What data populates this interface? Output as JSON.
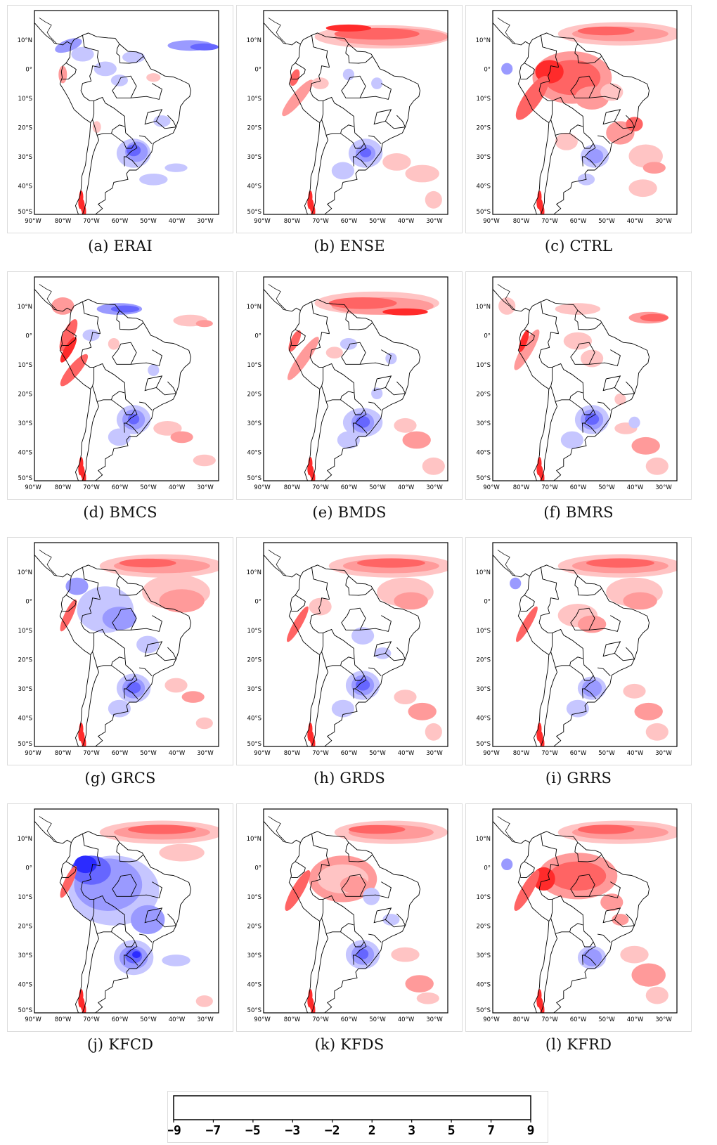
{
  "map_style": {
    "lon_ticks": [
      "90°W",
      "80°W",
      "70°W",
      "60°W",
      "50°W",
      "40°W",
      "30°W"
    ],
    "lat_ticks": [
      "10°N",
      "0°",
      "10°S",
      "20°S",
      "30°S",
      "40°S",
      "50°S"
    ],
    "colors": {
      "neg_strong": "#2b2bff",
      "neg_mid": "#6666ff",
      "neg_light": "#9a9aff",
      "neg_pale": "#c6c6ff",
      "pos_pale": "#ffc4c4",
      "pos_light": "#ff9a9a",
      "pos_mid": "#ff6464",
      "pos_strong": "#ff2b2b",
      "border": "#000000"
    }
  },
  "panels": [
    {
      "caption": "(a) ERAI",
      "pattern": "erai"
    },
    {
      "caption": "(b) ENSE",
      "pattern": "ense"
    },
    {
      "caption": "(c) CTRL",
      "pattern": "ctrl"
    },
    {
      "caption": "(d) BMCS",
      "pattern": "bmcs"
    },
    {
      "caption": "(e) BMDS",
      "pattern": "bmds"
    },
    {
      "caption": "(f) BMRS",
      "pattern": "bmrs"
    },
    {
      "caption": "(g) GRCS",
      "pattern": "grcs"
    },
    {
      "caption": "(h) GRDS",
      "pattern": "grds"
    },
    {
      "caption": "(i) GRRS",
      "pattern": "grrs"
    },
    {
      "caption": "(j) KFCD",
      "pattern": "kfcd"
    },
    {
      "caption": "(k) KFDS",
      "pattern": "kfds"
    },
    {
      "caption": "(l) KFRD",
      "pattern": "kfrd"
    }
  ],
  "colorbar": {
    "ticks": [
      "−9",
      "−7",
      "−5",
      "−3",
      "−2",
      "2",
      "3",
      "5",
      "7",
      "9"
    ],
    "colors": [
      "#2b2bff",
      "#6666ff",
      "#9a9aff",
      "#c6c6ff",
      "#ffffff",
      "#ffc4c4",
      "#ff9a9a",
      "#ff6464",
      "#ff2b2b"
    ]
  }
}
